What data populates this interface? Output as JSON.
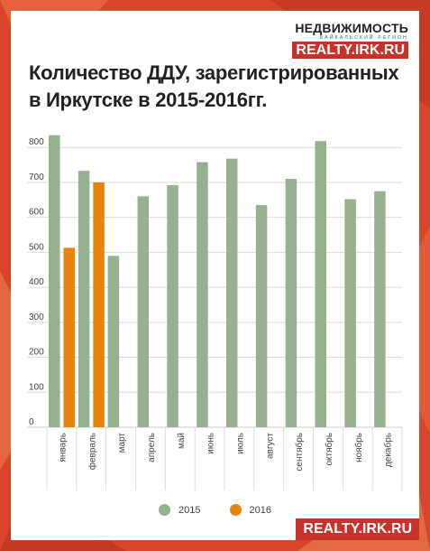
{
  "logo": {
    "name": "НЕДВИЖИМОСТЬ",
    "subtitle": "БАЙКАЛЬСКИЙ РЕГИОН",
    "site": "REALTY.IRK.RU"
  },
  "footer": {
    "site": "REALTY.IRK.RU"
  },
  "colors": {
    "background": "#d9452a",
    "series_2015": "#97b08f",
    "series_2016": "#e8830c",
    "brand_red": "#c7322a"
  },
  "chart_data": {
    "type": "bar",
    "title": "Количество ДДУ, зарегистрированных в Иркутске в 2015-2016гг.",
    "categories": [
      "январь",
      "февраль",
      "март",
      "апрель",
      "май",
      "июнь",
      "июль",
      "август",
      "сентябрь",
      "октябрь",
      "ноябрь",
      "декабрь"
    ],
    "series": [
      {
        "name": "2015",
        "color": "#97b08f",
        "values": [
          835,
          733,
          490,
          660,
          692,
          758,
          768,
          635,
          710,
          818,
          652,
          675
        ]
      },
      {
        "name": "2016",
        "color": "#e8830c",
        "values": [
          513,
          700,
          null,
          null,
          null,
          null,
          null,
          null,
          null,
          null,
          null,
          null
        ]
      }
    ],
    "y_ticks": [
      0,
      100,
      200,
      300,
      400,
      500,
      600,
      700,
      800
    ],
    "ylim": [
      0,
      860
    ],
    "grid": true,
    "legend_position": "bottom"
  }
}
